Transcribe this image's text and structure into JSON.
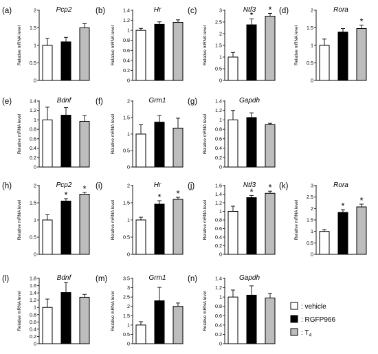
{
  "legend": {
    "items": [
      {
        "label": ": vehicle",
        "color": "#ffffff"
      },
      {
        "label": ": RGFP966",
        "color": "#000000"
      },
      {
        "label": ": T",
        "subscript": "4",
        "color": "#bdbdbd"
      }
    ]
  },
  "colors": {
    "vehicle": "#ffffff",
    "RGFP966": "#000000",
    "T4": "#bdbdbd",
    "axis": "#000000"
  },
  "chart_data": [
    {
      "type": "bar",
      "panel": "(a)",
      "title": "Pcp2",
      "ylabel": "Relative mRNA level",
      "categories": [
        "vehicle",
        "RGFP966",
        "T4"
      ],
      "values": [
        1.0,
        1.1,
        1.5
      ],
      "errors": [
        0.2,
        0.13,
        0.12
      ],
      "significant": [
        false,
        false,
        false
      ],
      "ylim": [
        0,
        2
      ],
      "yticks": [
        "0",
        "0.5",
        "1",
        "1.5",
        "2"
      ]
    },
    {
      "type": "bar",
      "panel": "(b)",
      "title": "Hr",
      "ylabel": "Relative mRNA level",
      "categories": [
        "vehicle",
        "RGFP966",
        "T4"
      ],
      "values": [
        1.0,
        1.12,
        1.16
      ],
      "errors": [
        0.04,
        0.05,
        0.05
      ],
      "significant": [
        false,
        false,
        false
      ],
      "ylim": [
        0,
        1.4
      ],
      "yticks": [
        "0",
        "0.2",
        "0.4",
        "0.6",
        "0.8",
        "1",
        "1.2",
        "1.4"
      ]
    },
    {
      "type": "bar",
      "panel": "(c)",
      "title": "Ntf3",
      "ylabel": "Relative mRNA level",
      "categories": [
        "vehicle",
        "RGFP966",
        "T4"
      ],
      "values": [
        1.0,
        2.38,
        2.75
      ],
      "errors": [
        0.2,
        0.25,
        0.12
      ],
      "significant": [
        false,
        true,
        true
      ],
      "ylim": [
        0,
        3
      ],
      "yticks": [
        "0",
        "0.5",
        "1",
        "1.5",
        "2",
        "2.5",
        "3"
      ]
    },
    {
      "type": "bar",
      "panel": "(d)",
      "title": "Rora",
      "ylabel": "Relative mRNA level",
      "categories": [
        "vehicle",
        "RGFP966",
        "T4"
      ],
      "values": [
        1.0,
        1.38,
        1.48
      ],
      "errors": [
        0.18,
        0.1,
        0.1
      ],
      "significant": [
        false,
        false,
        true
      ],
      "ylim": [
        0,
        2
      ],
      "yticks": [
        "0",
        "0.5",
        "1",
        "1.5",
        "2"
      ]
    },
    {
      "type": "bar",
      "panel": "(e)",
      "title": "Bdnf",
      "ylabel": "Relative mRNA level",
      "categories": [
        "vehicle",
        "RGFP966",
        "T4"
      ],
      "values": [
        1.0,
        1.1,
        0.97
      ],
      "errors": [
        0.27,
        0.16,
        0.12
      ],
      "significant": [
        false,
        false,
        false
      ],
      "ylim": [
        0,
        1.4
      ],
      "yticks": [
        "0",
        "0.2",
        "0.4",
        "0.6",
        "0.8",
        "1",
        "1.2",
        "1.4"
      ]
    },
    {
      "type": "bar",
      "panel": "(f)",
      "title": "Grm1",
      "ylabel": "Relative mRNA level",
      "categories": [
        "vehicle",
        "RGFP966",
        "T4"
      ],
      "values": [
        1.0,
        1.36,
        1.18
      ],
      "errors": [
        0.28,
        0.2,
        0.3
      ],
      "significant": [
        false,
        false,
        false
      ],
      "ylim": [
        0,
        2
      ],
      "yticks": [
        "0",
        "0.5",
        "1",
        "1.5",
        "2"
      ]
    },
    {
      "type": "bar",
      "panel": "(g)",
      "title": "Gapdh",
      "ylabel": "Relative mRNA level",
      "categories": [
        "vehicle",
        "RGFP966",
        "T4"
      ],
      "values": [
        1.0,
        1.05,
        0.9
      ],
      "errors": [
        0.2,
        0.1,
        0.03
      ],
      "significant": [
        false,
        false,
        false
      ],
      "ylim": [
        0,
        1.4
      ],
      "yticks": [
        "0",
        "0.2",
        "0.4",
        "0.6",
        "0.8",
        "1",
        "1.2",
        "1.4"
      ]
    },
    {
      "type": "bar",
      "panel": "(h)",
      "title": "Pcp2",
      "ylabel": "Relative mRNA level",
      "categories": [
        "vehicle",
        "RGFP966",
        "T4"
      ],
      "values": [
        1.0,
        1.55,
        1.75
      ],
      "errors": [
        0.15,
        0.07,
        0.05
      ],
      "significant": [
        false,
        true,
        true
      ],
      "ylim": [
        0,
        2
      ],
      "yticks": [
        "0",
        "0.5",
        "1",
        "1.5",
        "2"
      ]
    },
    {
      "type": "bar",
      "panel": "(i)",
      "title": "Hr",
      "ylabel": "Relative mRNA level",
      "categories": [
        "vehicle",
        "RGFP966",
        "T4"
      ],
      "values": [
        1.0,
        1.46,
        1.6
      ],
      "errors": [
        0.08,
        0.1,
        0.06
      ],
      "significant": [
        false,
        true,
        true
      ],
      "ylim": [
        0,
        2
      ],
      "yticks": [
        "0",
        "0.5",
        "1",
        "1.5",
        "2"
      ]
    },
    {
      "type": "bar",
      "panel": "(j)",
      "title": "Ntf3",
      "ylabel": "Relative mRNA level",
      "categories": [
        "vehicle",
        "RGFP966",
        "T4"
      ],
      "values": [
        1.0,
        1.32,
        1.42
      ],
      "errors": [
        0.12,
        0.05,
        0.05
      ],
      "significant": [
        false,
        true,
        true
      ],
      "ylim": [
        0,
        1.6
      ],
      "yticks": [
        "0",
        "0.2",
        "0.4",
        "0.6",
        "0.8",
        "1",
        "1.2",
        "1.4",
        "1.6"
      ]
    },
    {
      "type": "bar",
      "panel": "(k)",
      "title": "Rora",
      "ylabel": "Relative mRNA level",
      "categories": [
        "vehicle",
        "RGFP966",
        "T4"
      ],
      "values": [
        1.0,
        1.83,
        2.07
      ],
      "errors": [
        0.08,
        0.12,
        0.12
      ],
      "significant": [
        false,
        true,
        true
      ],
      "ylim": [
        0,
        3
      ],
      "yticks": [
        "0",
        "0.5",
        "1",
        "1.5",
        "2",
        "2.5",
        "3"
      ]
    },
    {
      "type": "bar",
      "panel": "(l)",
      "title": "Bdnf",
      "ylabel": "Relative mRNA level",
      "categories": [
        "vehicle",
        "RGFP966",
        "T4"
      ],
      "values": [
        1.0,
        1.41,
        1.28
      ],
      "errors": [
        0.23,
        0.28,
        0.08
      ],
      "significant": [
        false,
        false,
        false
      ],
      "ylim": [
        0,
        1.8
      ],
      "yticks": [
        "0",
        "0.2",
        "0.4",
        "0.6",
        "0.8",
        "1",
        "1.2",
        "1.4",
        "1.6",
        "1.8"
      ]
    },
    {
      "type": "bar",
      "panel": "(m)",
      "title": "Grm1",
      "ylabel": "Relative mRNA level",
      "categories": [
        "vehicle",
        "RGFP966",
        "T4"
      ],
      "values": [
        1.0,
        2.3,
        2.0
      ],
      "errors": [
        0.18,
        0.72,
        0.18
      ],
      "significant": [
        false,
        false,
        false
      ],
      "ylim": [
        0,
        3.5
      ],
      "yticks": [
        "0",
        "0.5",
        "1",
        "1.5",
        "2",
        "2.5",
        "3",
        "3.5"
      ]
    },
    {
      "type": "bar",
      "panel": "(n)",
      "title": "Gapdh",
      "ylabel": "Relative mRNA level",
      "categories": [
        "vehicle",
        "RGFP966",
        "T4"
      ],
      "values": [
        1.0,
        1.04,
        0.98
      ],
      "errors": [
        0.15,
        0.2,
        0.1
      ],
      "significant": [
        false,
        false,
        false
      ],
      "ylim": [
        0,
        1.4
      ],
      "yticks": [
        "0",
        "0.2",
        "0.4",
        "0.6",
        "0.8",
        "1",
        "1.2",
        "1.4"
      ]
    }
  ]
}
